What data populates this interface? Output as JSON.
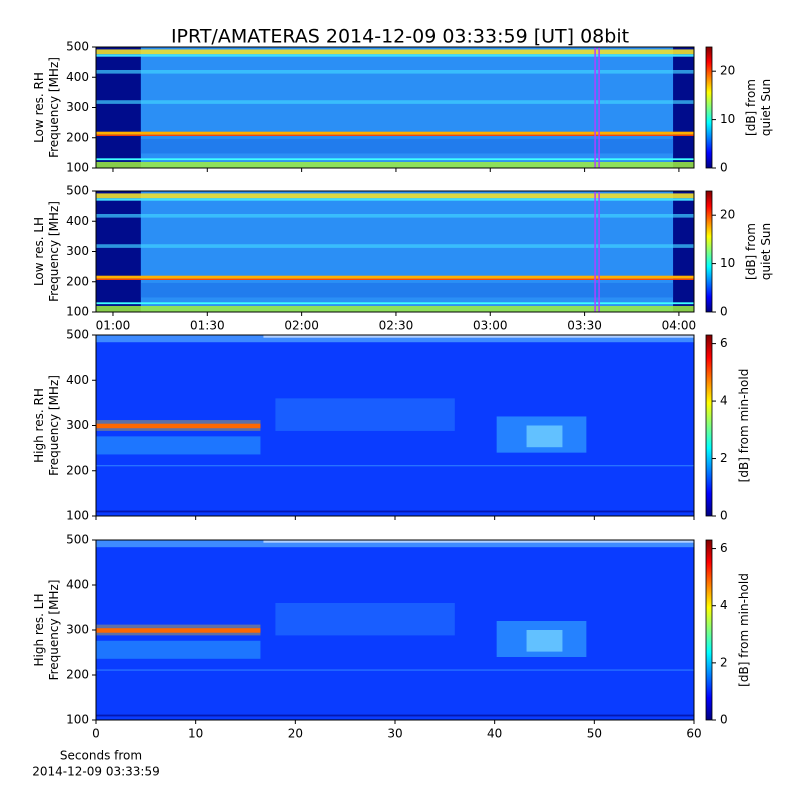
{
  "title": "IPRT/AMATERAS 2014-12-09 03:33:59 [UT]   08bit",
  "chart_data": [
    {
      "type": "heatmap",
      "ylabel": [
        "Low res. RH",
        "Frequency [MHz]"
      ],
      "xlim": [
        54.6,
        244.8
      ],
      "xticks": [
        {
          "value": 60,
          "label": "01:00"
        },
        {
          "value": 90,
          "label": "01:30"
        },
        {
          "value": 120,
          "label": "02:00"
        },
        {
          "value": 150,
          "label": "02:30"
        },
        {
          "value": 180,
          "label": "03:00"
        },
        {
          "value": 210,
          "label": "03:30"
        },
        {
          "value": 240,
          "label": "04:00"
        }
      ],
      "xtick_labels": false,
      "ylim": [
        100,
        500
      ],
      "yticks": [
        100,
        200,
        300,
        400,
        500
      ],
      "marker_x": 213.98,
      "marker_color": "#b040ff",
      "mode": "low",
      "clim": [
        0,
        25
      ],
      "cticks": [
        0,
        10,
        20
      ],
      "clabel": [
        "[dB] from",
        "quiet Sun"
      ]
    },
    {
      "type": "heatmap",
      "ylabel": [
        "Low res. LH",
        "Frequency [MHz]"
      ],
      "xlim": [
        54.6,
        244.8
      ],
      "xticks": [
        {
          "value": 60,
          "label": "01:00"
        },
        {
          "value": 90,
          "label": "01:30"
        },
        {
          "value": 120,
          "label": "02:00"
        },
        {
          "value": 150,
          "label": "02:30"
        },
        {
          "value": 180,
          "label": "03:00"
        },
        {
          "value": 210,
          "label": "03:30"
        },
        {
          "value": 240,
          "label": "04:00"
        }
      ],
      "xtick_labels": true,
      "ylim": [
        100,
        500
      ],
      "yticks": [
        100,
        200,
        300,
        400,
        500
      ],
      "marker_x": 213.98,
      "marker_color": "#b040ff",
      "mode": "low",
      "clim": [
        0,
        25
      ],
      "cticks": [
        0,
        10,
        20
      ],
      "clabel": [
        "[dB] from",
        "quiet Sun"
      ]
    },
    {
      "type": "heatmap",
      "ylabel": [
        "High res. RH",
        "Frequency [MHz]"
      ],
      "xlim": [
        0,
        60
      ],
      "xticks": [
        0,
        10,
        20,
        30,
        40,
        50,
        60
      ],
      "xtick_labels": false,
      "ylim": [
        100,
        500
      ],
      "yticks": [
        100,
        200,
        300,
        400,
        500
      ],
      "mode": "high",
      "clim": [
        0,
        6.3
      ],
      "cticks": [
        0,
        2,
        4,
        6
      ],
      "clabel": [
        "[dB] from min-hold"
      ]
    },
    {
      "type": "heatmap",
      "ylabel": [
        "High res. LH",
        "Frequency [MHz]"
      ],
      "xlim": [
        0,
        60
      ],
      "xticks": [
        0,
        10,
        20,
        30,
        40,
        50,
        60
      ],
      "xtick_labels": true,
      "ylim": [
        100,
        500
      ],
      "yticks": [
        100,
        200,
        300,
        400,
        500
      ],
      "mode": "high",
      "clim": [
        0,
        6.3
      ],
      "cticks": [
        0,
        2,
        4,
        6
      ],
      "clabel": [
        "[dB] from min-hold"
      ],
      "xlabel": [
        "Seconds from",
        "2014-12-09 03:33:59"
      ]
    }
  ]
}
